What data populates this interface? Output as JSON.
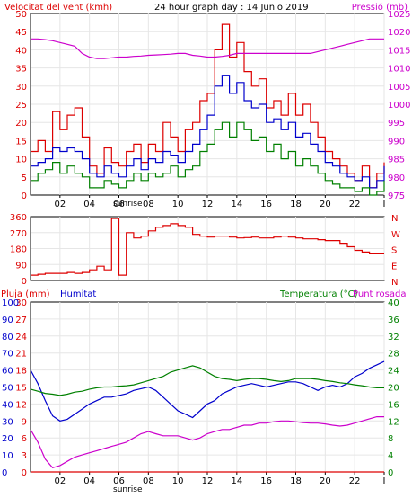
{
  "header": {
    "left_label": "Velocitat del vent (kmh)",
    "center_label": "24 hour graph day : 14 Junio 2019",
    "right_label": "Pressió (mb)"
  },
  "colors": {
    "red": "#dd0000",
    "green": "#008000",
    "blue": "#0000cc",
    "magenta": "#cc00cc",
    "frame": "#000000",
    "grid": "#e6e6e6"
  },
  "x_ticks": [
    "02",
    "04",
    "06",
    "08",
    "10",
    "12",
    "14",
    "16",
    "18",
    "20",
    "22",
    "I"
  ],
  "sunrise_label": "sunrise",
  "panel3_headers": {
    "rain": "Pluja (mm)",
    "humidity": "Humitat",
    "temperature": "Temperatura (°C)",
    "dewpoint": "Punt rosada"
  },
  "chart_data": [
    {
      "type": "line",
      "title": "24 hour graph day : 14 Junio 2019",
      "ylabel": "Velocitat del vent (kmh)",
      "y2label": "Pressió (mb)",
      "ylim": [
        0,
        50
      ],
      "y2lim": [
        975,
        1025
      ],
      "y_ticks": [
        "0",
        "5",
        "10",
        "15",
        "20",
        "25",
        "30",
        "35",
        "40",
        "45",
        "50"
      ],
      "y2_ticks": [
        "975",
        "980",
        "985",
        "990",
        "995",
        "1000",
        "1005",
        "1010",
        "1015",
        "1020",
        "1025"
      ],
      "x_hours": [
        0,
        0.5,
        1,
        1.5,
        2,
        2.5,
        3,
        3.5,
        4,
        4.5,
        5,
        5.5,
        6,
        6.5,
        7,
        7.5,
        8,
        8.5,
        9,
        9.5,
        10,
        10.5,
        11,
        11.5,
        12,
        12.5,
        13,
        13.5,
        14,
        14.5,
        15,
        15.5,
        16,
        16.5,
        17,
        17.5,
        18,
        18.5,
        19,
        19.5,
        20,
        20.5,
        21,
        21.5,
        22,
        22.5,
        23,
        23.5,
        24
      ],
      "series": [
        {
          "key": "gust",
          "color": "#dd0000",
          "y_axis": "left",
          "values": [
            12,
            15,
            12,
            23,
            18,
            22,
            24,
            16,
            8,
            6,
            13,
            9,
            8,
            12,
            14,
            9,
            14,
            12,
            20,
            16,
            12,
            18,
            20,
            26,
            28,
            40,
            47,
            38,
            42,
            34,
            30,
            32,
            24,
            26,
            22,
            28,
            22,
            25,
            20,
            16,
            12,
            10,
            8,
            6,
            4,
            8,
            2,
            6,
            9
          ]
        },
        {
          "key": "average",
          "color": "#0000cc",
          "y_axis": "left",
          "values": [
            8,
            9,
            10,
            13,
            12,
            13,
            12,
            10,
            6,
            5,
            8,
            6,
            5,
            8,
            10,
            7,
            10,
            9,
            12,
            11,
            9,
            12,
            14,
            18,
            22,
            30,
            33,
            28,
            31,
            26,
            24,
            25,
            20,
            21,
            18,
            20,
            16,
            17,
            14,
            12,
            9,
            8,
            6,
            5,
            4,
            5,
            2,
            4,
            8
          ]
        },
        {
          "key": "minimum",
          "color": "#008000",
          "y_axis": "left",
          "values": [
            4,
            6,
            7,
            9,
            6,
            8,
            6,
            5,
            2,
            2,
            4,
            3,
            2,
            4,
            6,
            4,
            6,
            5,
            6,
            8,
            5,
            7,
            8,
            12,
            14,
            18,
            20,
            16,
            20,
            18,
            15,
            16,
            12,
            14,
            10,
            12,
            8,
            10,
            8,
            6,
            4,
            3,
            2,
            2,
            1,
            2,
            0,
            1,
            4
          ]
        },
        {
          "key": "pressure",
          "color": "#cc00cc",
          "y_axis": "right",
          "values": [
            1018,
            1018,
            1017.8,
            1017.5,
            1017,
            1016.5,
            1016,
            1014,
            1013,
            1012.6,
            1012.6,
            1012.8,
            1013,
            1013,
            1013.2,
            1013.3,
            1013.5,
            1013.6,
            1013.7,
            1013.8,
            1014,
            1014,
            1013.5,
            1013.3,
            1013,
            1013,
            1013.2,
            1013.5,
            1014,
            1014,
            1014,
            1014,
            1014,
            1014,
            1014,
            1014,
            1014,
            1014,
            1014,
            1014.5,
            1015,
            1015.5,
            1016,
            1016.5,
            1017,
            1017.5,
            1018,
            1018,
            1018
          ]
        }
      ]
    },
    {
      "type": "line",
      "ylabel_ticks": [
        "0",
        "90",
        "180",
        "270",
        "360"
      ],
      "ylim": [
        0,
        360
      ],
      "compass_labels": [
        "N",
        "W",
        "S",
        "E",
        "N"
      ],
      "x_hours": [
        0,
        0.5,
        1,
        1.5,
        2,
        2.5,
        3,
        3.5,
        4,
        4.5,
        5,
        5.5,
        6,
        6.5,
        7,
        7.5,
        8,
        8.5,
        9,
        9.5,
        10,
        10.5,
        11,
        11.5,
        12,
        12.5,
        13,
        13.5,
        14,
        14.5,
        15,
        15.5,
        16,
        16.5,
        17,
        17.5,
        18,
        18.5,
        19,
        19.5,
        20,
        20.5,
        21,
        21.5,
        22,
        22.5,
        23,
        23.5,
        24
      ],
      "series": [
        {
          "key": "direction",
          "color": "#dd0000",
          "values": [
            30,
            35,
            40,
            40,
            40,
            45,
            40,
            45,
            60,
            80,
            60,
            350,
            30,
            270,
            240,
            250,
            280,
            300,
            310,
            320,
            310,
            300,
            260,
            250,
            245,
            250,
            250,
            245,
            240,
            242,
            245,
            240,
            240,
            245,
            250,
            245,
            240,
            235,
            235,
            230,
            225,
            225,
            210,
            190,
            170,
            160,
            150,
            150,
            150
          ]
        }
      ]
    },
    {
      "type": "line",
      "ylim_rain": [
        0,
        30
      ],
      "ylim_humidity": [
        0,
        100
      ],
      "ylim_temp": [
        0,
        40
      ],
      "rain_ticks": [
        "0",
        "3",
        "6",
        "9",
        "12",
        "15",
        "18",
        "21",
        "24",
        "27",
        "30"
      ],
      "humidity_ticks": [
        "0",
        "10",
        "20",
        "30",
        "40",
        "50",
        "60",
        "70",
        "80",
        "90",
        "100"
      ],
      "temp_ticks": [
        "0",
        "4",
        "8",
        "12",
        "16",
        "20",
        "24",
        "28",
        "32",
        "36",
        "40"
      ],
      "x_hours": [
        0,
        0.5,
        1,
        1.5,
        2,
        2.5,
        3,
        3.5,
        4,
        4.5,
        5,
        5.5,
        6,
        6.5,
        7,
        7.5,
        8,
        8.5,
        9,
        9.5,
        10,
        10.5,
        11,
        11.5,
        12,
        12.5,
        13,
        13.5,
        14,
        14.5,
        15,
        15.5,
        16,
        16.5,
        17,
        17.5,
        18,
        18.5,
        19,
        19.5,
        20,
        20.5,
        21,
        21.5,
        22,
        22.5,
        23,
        23.5,
        24
      ],
      "series": [
        {
          "key": "rain",
          "color": "#dd0000",
          "y_axis": "rain",
          "values": [
            0,
            0,
            0,
            0,
            0,
            0,
            0,
            0,
            0,
            0,
            0,
            0,
            0,
            0,
            0,
            0,
            0,
            0,
            0,
            0,
            0,
            0,
            0,
            0,
            0,
            0,
            0,
            0,
            0,
            0,
            0,
            0,
            0,
            0,
            0,
            0,
            0,
            0,
            0,
            0,
            0,
            0,
            0,
            0,
            0,
            0,
            0,
            0,
            0
          ]
        },
        {
          "key": "humidity",
          "color": "#0000cc",
          "y_axis": "humidity",
          "values": [
            60,
            52,
            42,
            33,
            30,
            31,
            34,
            37,
            40,
            42,
            44,
            44,
            45,
            46,
            48,
            49,
            50,
            48,
            44,
            40,
            36,
            34,
            32,
            36,
            40,
            42,
            46,
            48,
            50,
            51,
            52,
            51,
            50,
            51,
            52,
            53,
            53,
            52,
            50,
            48,
            50,
            51,
            50,
            52,
            56,
            58,
            61,
            63,
            65
          ]
        },
        {
          "key": "temperature",
          "color": "#008000",
          "y_axis": "temp",
          "values": [
            19.5,
            19,
            18.5,
            18.3,
            18,
            18.3,
            18.8,
            19,
            19.5,
            19.8,
            20,
            20,
            20.2,
            20.3,
            20.5,
            21,
            21.5,
            22,
            22.5,
            23.5,
            24,
            24.5,
            25,
            24.5,
            23.5,
            22.5,
            22,
            21.8,
            21.5,
            21.8,
            22,
            22,
            21.8,
            21.5,
            21.3,
            21.5,
            22,
            22,
            22,
            21.8,
            21.5,
            21.3,
            21,
            20.8,
            20.5,
            20.3,
            20,
            19.8,
            19.8
          ]
        },
        {
          "key": "dewpoint",
          "color": "#cc00cc",
          "y_axis": "temp",
          "values": [
            10,
            7,
            3,
            1,
            1.5,
            2.5,
            3.5,
            4,
            4.5,
            5,
            5.5,
            6,
            6.5,
            7,
            8,
            9,
            9.5,
            9,
            8.5,
            8.5,
            8.5,
            8,
            7.5,
            8,
            9,
            9.5,
            10,
            10,
            10.5,
            11,
            11,
            11.5,
            11.5,
            11.8,
            12,
            12,
            11.8,
            11.6,
            11.5,
            11.5,
            11.3,
            11,
            10.8,
            11,
            11.5,
            12,
            12.5,
            13,
            13
          ]
        }
      ]
    }
  ]
}
